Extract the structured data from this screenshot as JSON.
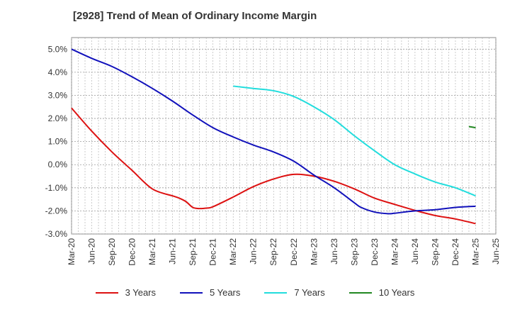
{
  "chart_data": {
    "type": "line",
    "title": "[2928]  Trend of Mean of Ordinary Income Margin",
    "xlabel": "",
    "ylabel": "",
    "ylim": [
      -3.0,
      5.5
    ],
    "yticks": [
      -3.0,
      -2.0,
      -1.0,
      0.0,
      1.0,
      2.0,
      3.0,
      4.0,
      5.0
    ],
    "ytick_labels": [
      "-3.0%",
      "-2.0%",
      "-1.0%",
      "0.0%",
      "1.0%",
      "2.0%",
      "3.0%",
      "4.0%",
      "5.0%"
    ],
    "xtick_labels": [
      "Mar-20",
      "Jun-20",
      "Sep-20",
      "Dec-20",
      "Mar-21",
      "Jun-21",
      "Sep-21",
      "Dec-21",
      "Mar-22",
      "Jun-22",
      "Sep-22",
      "Dec-22",
      "Mar-23",
      "Jun-23",
      "Sep-23",
      "Dec-23",
      "Mar-24",
      "Jun-24",
      "Sep-24",
      "Dec-24",
      "Mar-25",
      "Jun-25"
    ],
    "x_unit": "months since Mar-20",
    "grid": true,
    "legend_position": "bottom",
    "series": [
      {
        "name": "3 Years",
        "color": "#dd1111",
        "x": [
          0,
          3,
          6,
          9,
          12,
          15,
          16,
          17,
          18,
          19,
          20,
          21,
          24,
          27,
          30,
          33,
          36,
          39,
          42,
          45,
          48,
          51,
          54,
          57,
          60
        ],
        "y": [
          2.45,
          1.45,
          0.55,
          -0.25,
          -1.05,
          -1.35,
          -1.45,
          -1.6,
          -1.85,
          -1.9,
          -1.88,
          -1.82,
          -1.4,
          -0.95,
          -0.62,
          -0.42,
          -0.5,
          -0.72,
          -1.05,
          -1.45,
          -1.72,
          -1.98,
          -2.2,
          -2.35,
          -2.55
        ]
      },
      {
        "name": "5 Years",
        "color": "#1111bb",
        "x": [
          0,
          3,
          6,
          9,
          12,
          15,
          18,
          21,
          24,
          27,
          30,
          33,
          36,
          39,
          42,
          43,
          45,
          47,
          48,
          51,
          54,
          57,
          60
        ],
        "y": [
          5.0,
          4.6,
          4.25,
          3.8,
          3.3,
          2.75,
          2.15,
          1.6,
          1.2,
          0.85,
          0.55,
          0.15,
          -0.45,
          -1.0,
          -1.65,
          -1.85,
          -2.05,
          -2.12,
          -2.1,
          -2.0,
          -1.95,
          -1.85,
          -1.8
        ]
      },
      {
        "name": "7 Years",
        "color": "#22dddd",
        "x": [
          24,
          27,
          30,
          33,
          36,
          39,
          42,
          45,
          48,
          51,
          54,
          57,
          60
        ],
        "y": [
          3.4,
          3.3,
          3.2,
          2.95,
          2.5,
          1.95,
          1.25,
          0.6,
          0.0,
          -0.4,
          -0.75,
          -1.0,
          -1.35
        ]
      },
      {
        "name": "10 Years",
        "color": "#228822",
        "x": [
          59,
          60
        ],
        "y": [
          1.65,
          1.6
        ]
      }
    ]
  }
}
